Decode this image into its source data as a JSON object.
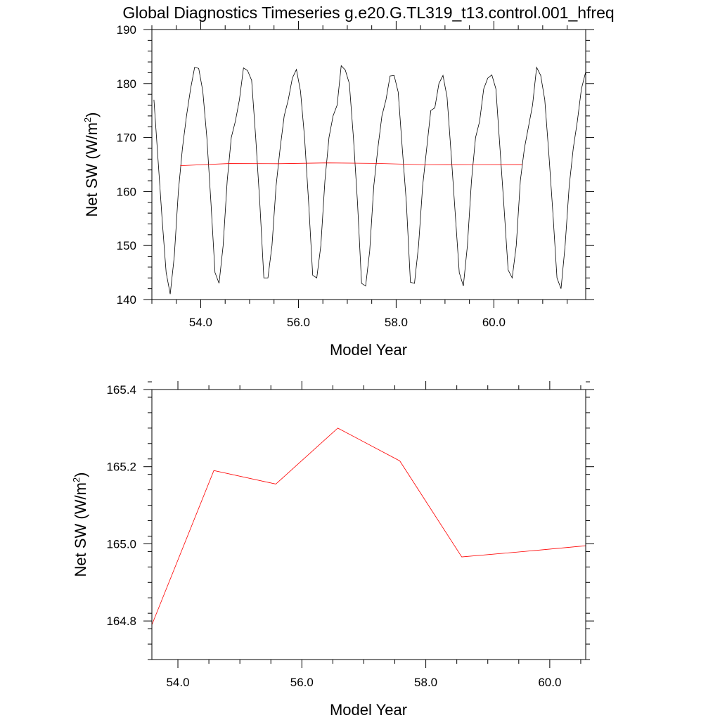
{
  "figure": {
    "title": "Global Diagnostics Timeseries g.e20.G.TL319_t13.control.001_hfreq"
  },
  "colors": {
    "monthly": "#000000",
    "annual": "#ff0000",
    "axes": "#000000",
    "background": "#ffffff"
  },
  "chart_data": [
    {
      "type": "line",
      "xlabel": "Model Year",
      "ylabel_main": "Net SW (W/m",
      "ylabel_sup": "2",
      "ylabel_close": ")",
      "xlim": [
        53.0,
        61.88
      ],
      "ylim": [
        140,
        190
      ],
      "x_ticks": [
        54.0,
        56.0,
        58.0,
        60.0
      ],
      "x_tick_labels": [
        "54.0",
        "56.0",
        "58.0",
        "60.0"
      ],
      "y_ticks": [
        140,
        150,
        160,
        170,
        180,
        190
      ],
      "y_tick_labels": [
        "140",
        "150",
        "160",
        "170",
        "180",
        "190"
      ],
      "x_minor_step": 0.5,
      "y_minor_step": 2,
      "series": [
        {
          "color": "#000000",
          "x_start": 53.042,
          "x_step": 0.0833333,
          "values": [
            177,
            166,
            155,
            145,
            141,
            148,
            160,
            168,
            174,
            179,
            183,
            182.8,
            178.6,
            170,
            158,
            145,
            143,
            150,
            162,
            170,
            173,
            177,
            182.9,
            182.4,
            180.6,
            170,
            158,
            144,
            144,
            150,
            161,
            168,
            174,
            177,
            181,
            182.6,
            178.6,
            170,
            158,
            144.5,
            144,
            150,
            162,
            170,
            174,
            176,
            183.3,
            182.5,
            180,
            170,
            158,
            143,
            142.5,
            149,
            161,
            168,
            174,
            177,
            181.4,
            181.5,
            178.4,
            168,
            158,
            143.2,
            143,
            150,
            161,
            168,
            175,
            175.5,
            180,
            181.5,
            177.5,
            167,
            156,
            145,
            142.5,
            150,
            162,
            170,
            173,
            179,
            181,
            181.6,
            179,
            168,
            157,
            145.5,
            144,
            150,
            162,
            168,
            172,
            176,
            183,
            181.5,
            177,
            167,
            156,
            144,
            142,
            150,
            161,
            168,
            173,
            179,
            182
          ]
        },
        {
          "color": "#ff0000",
          "x": [
            53.58,
            54.58,
            55.58,
            56.58,
            57.58,
            58.58,
            59.58,
            60.58
          ],
          "values": [
            164.79,
            165.19,
            165.155,
            165.3,
            165.215,
            164.966,
            164.98,
            164.995
          ]
        }
      ]
    },
    {
      "type": "line",
      "xlabel": "Model Year",
      "ylabel_main": "Net SW (W/m",
      "ylabel_sup": "2",
      "ylabel_close": ")",
      "xlim": [
        53.58,
        60.58
      ],
      "ylim": [
        164.7,
        165.4
      ],
      "x_ticks": [
        54.0,
        56.0,
        58.0,
        60.0
      ],
      "x_tick_labels": [
        "54.0",
        "56.0",
        "58.0",
        "60.0"
      ],
      "y_ticks": [
        164.8,
        165.0,
        165.2,
        165.4
      ],
      "y_tick_labels": [
        "164.8",
        "165.0",
        "165.2",
        "165.4"
      ],
      "x_minor_step": 0.5,
      "y_minor_step": 0.04,
      "series": [
        {
          "color": "#ff0000",
          "x": [
            53.58,
            54.58,
            55.58,
            56.58,
            57.58,
            58.58,
            59.58,
            60.58
          ],
          "values": [
            164.79,
            165.19,
            165.155,
            165.3,
            165.215,
            164.966,
            164.98,
            164.995
          ]
        }
      ]
    }
  ]
}
